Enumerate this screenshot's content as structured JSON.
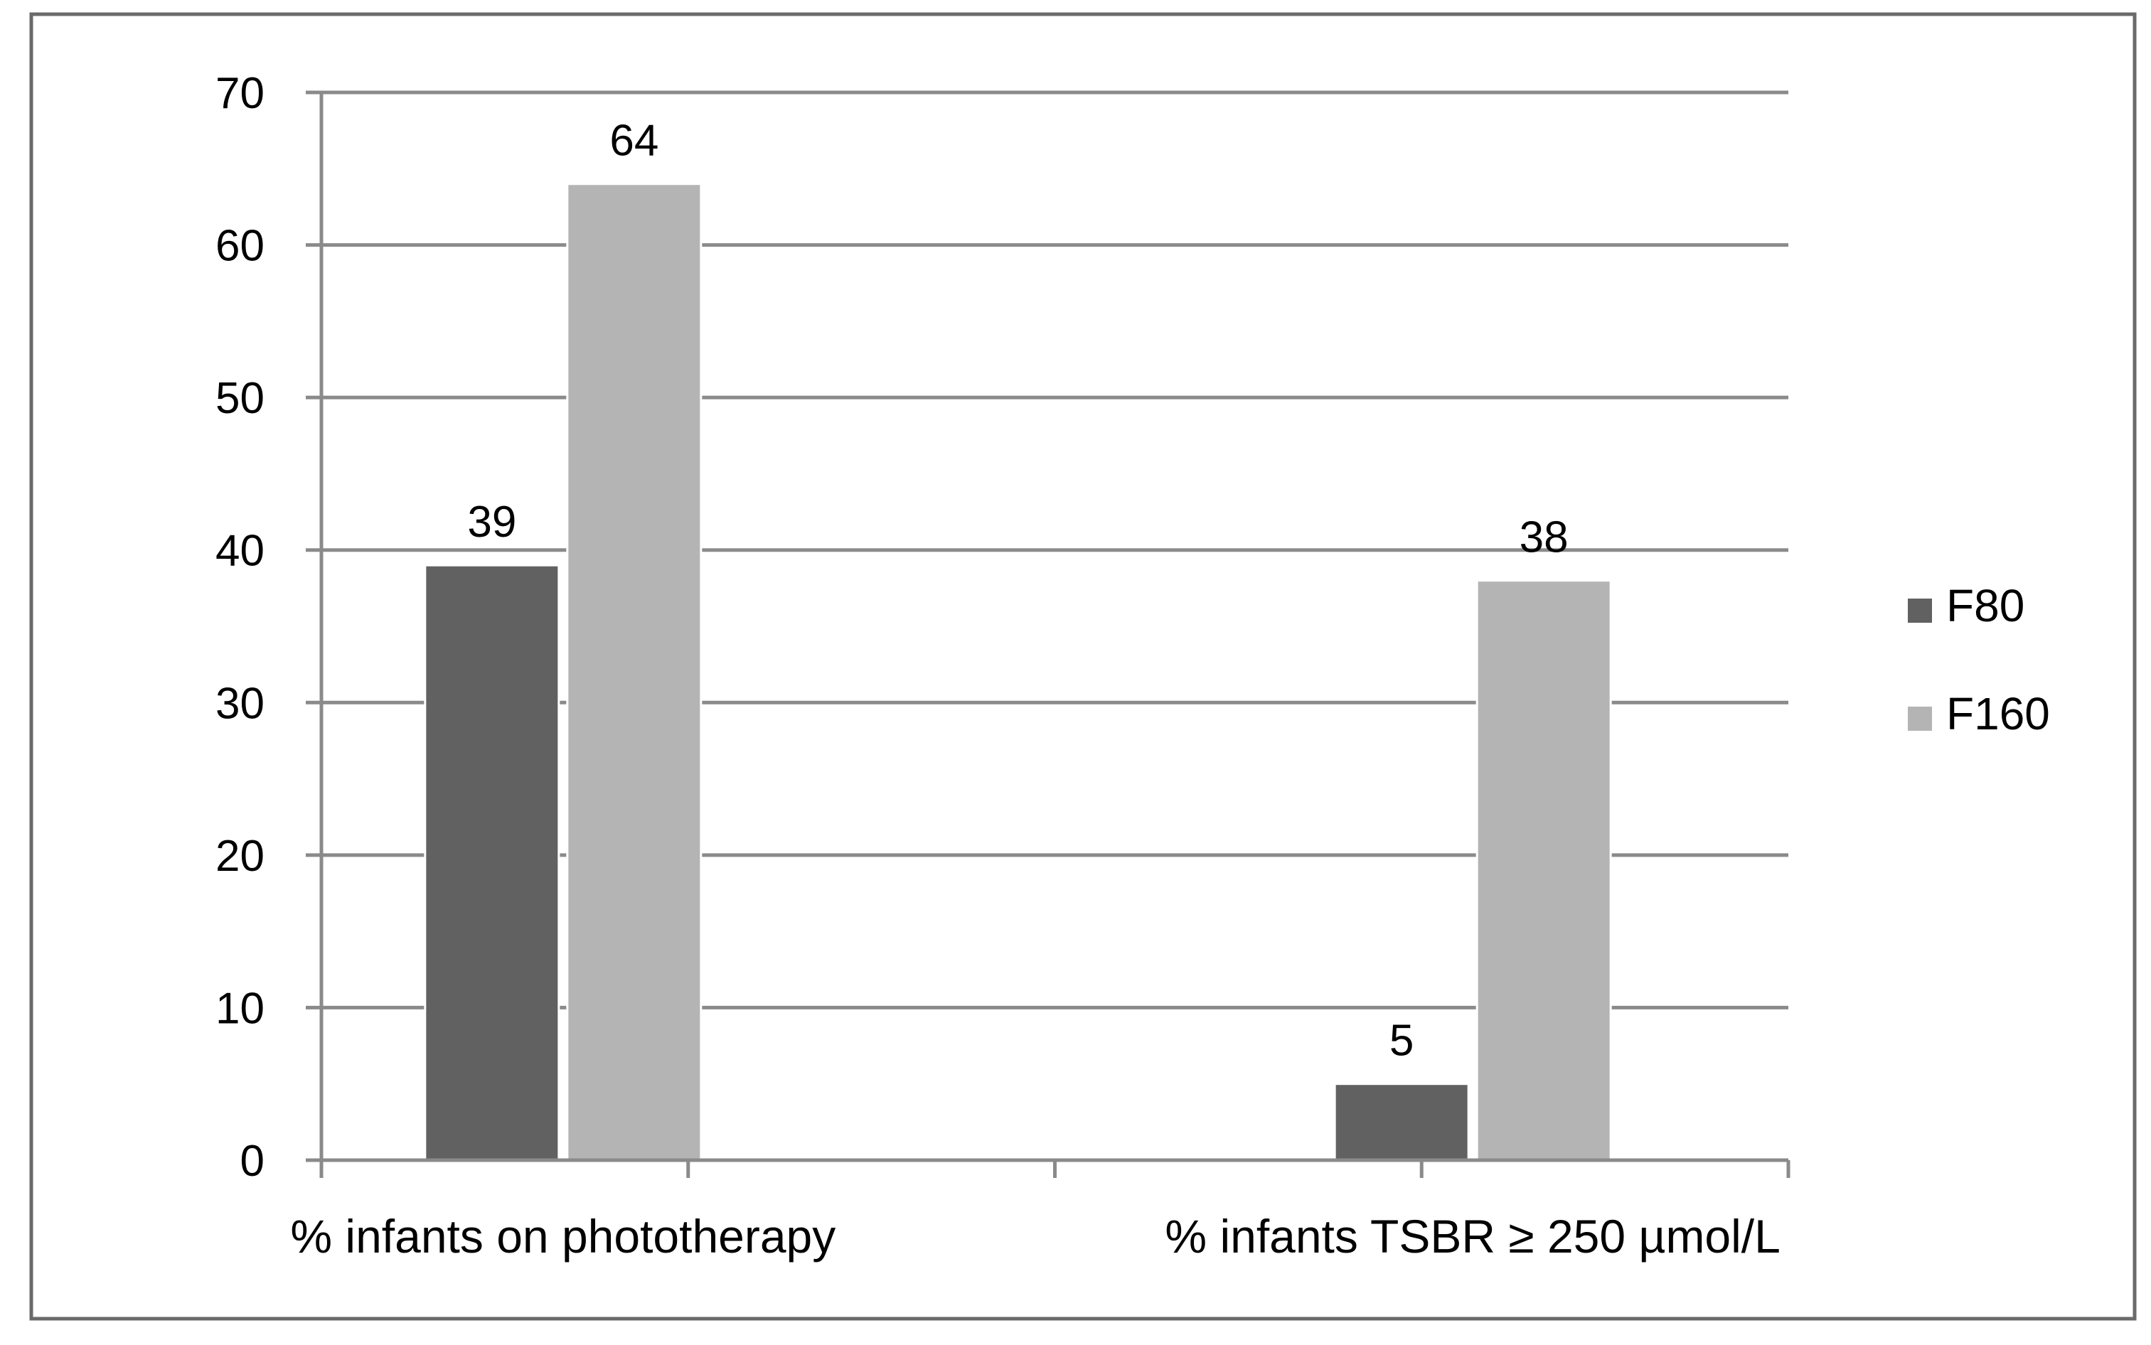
{
  "chart_data": {
    "type": "bar",
    "title": "",
    "xlabel": "",
    "ylabel": "",
    "categories": [
      "%  infants on phototherapy",
      "% infants TSBR ≥ 250 µmol/L"
    ],
    "series": [
      {
        "name": "F80",
        "values": [
          39,
          5
        ],
        "color": "#616161"
      },
      {
        "name": "F160",
        "values": [
          64,
          38
        ],
        "color": "#b4b4b4"
      }
    ],
    "ylim": [
      0,
      70
    ],
    "yticks": [
      0,
      10,
      20,
      30,
      40,
      50,
      60,
      70
    ],
    "data_labels": true,
    "grid": true,
    "legend_position": "right"
  }
}
